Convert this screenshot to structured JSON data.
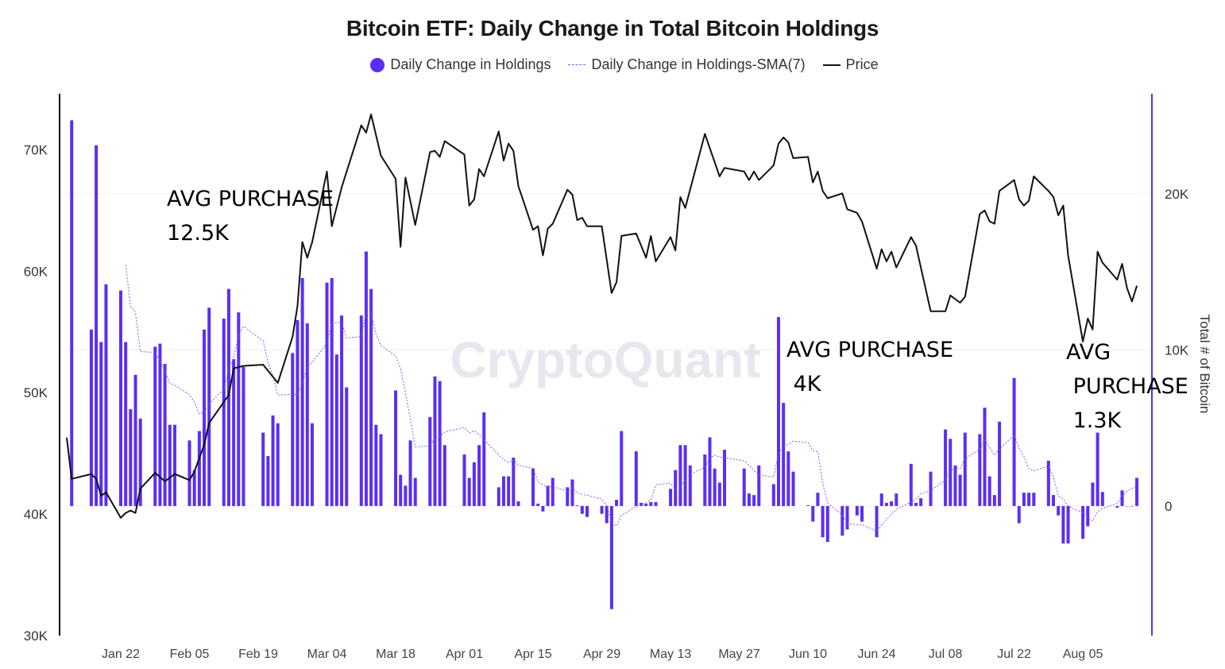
{
  "chart_data": {
    "type": "bar+line",
    "title": "Bitcoin ETF: Daily Change in Total Bitcoin Holdings",
    "legend": [
      {
        "name": "Daily Change in Holdings",
        "style": "dot"
      },
      {
        "name": "Daily Change in Holdings-SMA(7)",
        "style": "dashed"
      },
      {
        "name": "Price",
        "style": "line"
      }
    ],
    "legend_position": "top-center",
    "watermark": "CryptoQuant",
    "colors": {
      "bars": "#5b2ef5",
      "sma": "#7b5cf0",
      "price": "#111111",
      "right_axis": "#5b2ef5",
      "grid": "#f0f0f0"
    },
    "x_axis": {
      "type": "date",
      "range": [
        "2024-01-10",
        "2024-08-19"
      ],
      "ticks": [
        "Jan 22",
        "Feb 05",
        "Feb 19",
        "Mar 04",
        "Mar 18",
        "Apr 01",
        "Apr 15",
        "Apr 29",
        "May 13",
        "May 27",
        "Jun 10",
        "Jun 24",
        "Jul 08",
        "Jul 22",
        "Aug 05"
      ],
      "tick_dates": [
        "2024-01-22",
        "2024-02-05",
        "2024-02-19",
        "2024-03-04",
        "2024-03-18",
        "2024-04-01",
        "2024-04-15",
        "2024-04-29",
        "2024-05-13",
        "2024-05-27",
        "2024-06-10",
        "2024-06-24",
        "2024-07-08",
        "2024-07-22",
        "2024-08-05"
      ]
    },
    "y_left": {
      "label": "",
      "ticks": [
        "30K",
        "40K",
        "50K",
        "60K",
        "70K"
      ],
      "tick_values": [
        30000,
        40000,
        50000,
        60000,
        70000
      ],
      "range": [
        30000,
        74600
      ]
    },
    "y_right": {
      "label": "Total # of Bitcoin",
      "ticks": [
        "0",
        "10K",
        "20K"
      ],
      "tick_values": [
        0,
        10000,
        20000
      ],
      "range": [
        -8300,
        26400
      ]
    },
    "grid": true,
    "bars": {
      "name": "Daily Change in Holdings",
      "dates": [
        "2024-01-12",
        "2024-01-16",
        "2024-01-17",
        "2024-01-18",
        "2024-01-19",
        "2024-01-22",
        "2024-01-23",
        "2024-01-24",
        "2024-01-25",
        "2024-01-26",
        "2024-01-29",
        "2024-01-30",
        "2024-01-31",
        "2024-02-01",
        "2024-02-02",
        "2024-02-05",
        "2024-02-06",
        "2024-02-07",
        "2024-02-08",
        "2024-02-09",
        "2024-02-12",
        "2024-02-13",
        "2024-02-14",
        "2024-02-15",
        "2024-02-16",
        "2024-02-20",
        "2024-02-21",
        "2024-02-22",
        "2024-02-23",
        "2024-02-26",
        "2024-02-27",
        "2024-02-28",
        "2024-02-29",
        "2024-03-01",
        "2024-03-04",
        "2024-03-05",
        "2024-03-06",
        "2024-03-07",
        "2024-03-08",
        "2024-03-11",
        "2024-03-12",
        "2024-03-13",
        "2024-03-14",
        "2024-03-15",
        "2024-03-18",
        "2024-03-19",
        "2024-03-20",
        "2024-03-21",
        "2024-03-22",
        "2024-03-25",
        "2024-03-26",
        "2024-03-27",
        "2024-03-28",
        "2024-04-01",
        "2024-04-02",
        "2024-04-03",
        "2024-04-04",
        "2024-04-05",
        "2024-04-08",
        "2024-04-09",
        "2024-04-10",
        "2024-04-11",
        "2024-04-12",
        "2024-04-15",
        "2024-04-16",
        "2024-04-17",
        "2024-04-18",
        "2024-04-19",
        "2024-04-22",
        "2024-04-23",
        "2024-04-24",
        "2024-04-25",
        "2024-04-26",
        "2024-04-29",
        "2024-04-30",
        "2024-05-01",
        "2024-05-02",
        "2024-05-03",
        "2024-05-06",
        "2024-05-07",
        "2024-05-08",
        "2024-05-09",
        "2024-05-10",
        "2024-05-13",
        "2024-05-14",
        "2024-05-15",
        "2024-05-16",
        "2024-05-17",
        "2024-05-20",
        "2024-05-21",
        "2024-05-22",
        "2024-05-23",
        "2024-05-24",
        "2024-05-28",
        "2024-05-29",
        "2024-05-30",
        "2024-05-31",
        "2024-06-03",
        "2024-06-04",
        "2024-06-05",
        "2024-06-06",
        "2024-06-07",
        "2024-06-10",
        "2024-06-11",
        "2024-06-12",
        "2024-06-13",
        "2024-06-14",
        "2024-06-17",
        "2024-06-18",
        "2024-06-20",
        "2024-06-21",
        "2024-06-24",
        "2024-06-25",
        "2024-06-26",
        "2024-06-27",
        "2024-06-28",
        "2024-07-01",
        "2024-07-02",
        "2024-07-03",
        "2024-07-05",
        "2024-07-08",
        "2024-07-09",
        "2024-07-10",
        "2024-07-11",
        "2024-07-12",
        "2024-07-15",
        "2024-07-16",
        "2024-07-17",
        "2024-07-18",
        "2024-07-19",
        "2024-07-22",
        "2024-07-23",
        "2024-07-24",
        "2024-07-25",
        "2024-07-26",
        "2024-07-29",
        "2024-07-30",
        "2024-07-31",
        "2024-08-01",
        "2024-08-02",
        "2024-08-05",
        "2024-08-06",
        "2024-08-07",
        "2024-08-08",
        "2024-08-09",
        "2024-08-12",
        "2024-08-13",
        "2024-08-14",
        "2024-08-15",
        "2024-08-16"
      ],
      "values": [
        24700,
        11300,
        23100,
        10500,
        14200,
        13800,
        10500,
        6200,
        8400,
        5600,
        10200,
        10400,
        9100,
        5200,
        5200,
        4200,
        2300,
        4800,
        11300,
        12700,
        12000,
        13900,
        9400,
        12400,
        8900,
        4700,
        3200,
        5800,
        5300,
        9800,
        11900,
        14600,
        11700,
        5300,
        14300,
        14600,
        9700,
        12200,
        7600,
        12200,
        16300,
        13900,
        5200,
        4600,
        7400,
        2000,
        1300,
        4200,
        1800,
        5700,
        8300,
        8000,
        3900,
        3300,
        1800,
        2800,
        3900,
        6000,
        1200,
        1900,
        1900,
        3100,
        300,
        2400,
        150,
        -350,
        1300,
        1800,
        1200,
        1700,
        50,
        -500,
        -700,
        -500,
        -1100,
        -6600,
        400,
        4800,
        3500,
        200,
        150,
        250,
        250,
        1100,
        2300,
        3900,
        3900,
        2600,
        3300,
        4400,
        2400,
        1500,
        3600,
        2400,
        800,
        700,
        2600,
        1400,
        12100,
        6600,
        3500,
        2200,
        50,
        -1000,
        850,
        -2000,
        -2300,
        -1900,
        -1500,
        -600,
        -1000,
        -2000,
        800,
        200,
        300,
        800,
        2700,
        200,
        500,
        2200,
        4900,
        4300,
        2600,
        2000,
        4700,
        4600,
        6300,
        1900,
        700,
        5400,
        8200,
        -1100,
        850,
        850,
        850,
        2900,
        700,
        -600,
        -2400,
        -2400,
        -2100,
        -1300,
        1500,
        4700,
        900,
        -100,
        1000,
        0,
        0,
        1800
      ]
    },
    "sma": {
      "name": "Daily Change in Holdings-SMA(7)",
      "window": 7
    },
    "price": {
      "name": "Price",
      "dates": [
        "2024-01-11",
        "2024-01-12",
        "2024-01-16",
        "2024-01-17",
        "2024-01-18",
        "2024-01-19",
        "2024-01-22",
        "2024-01-23",
        "2024-01-24",
        "2024-01-25",
        "2024-01-26",
        "2024-01-29",
        "2024-01-31",
        "2024-02-02",
        "2024-02-05",
        "2024-02-06",
        "2024-02-08",
        "2024-02-09",
        "2024-02-13",
        "2024-02-14",
        "2024-02-16",
        "2024-02-20",
        "2024-02-23",
        "2024-02-26",
        "2024-02-27",
        "2024-02-28",
        "2024-02-29",
        "2024-03-01",
        "2024-03-04",
        "2024-03-05",
        "2024-03-07",
        "2024-03-11",
        "2024-03-12",
        "2024-03-13",
        "2024-03-15",
        "2024-03-18",
        "2024-03-19",
        "2024-03-20",
        "2024-03-22",
        "2024-03-25",
        "2024-03-26",
        "2024-03-27",
        "2024-03-28",
        "2024-04-01",
        "2024-04-02",
        "2024-04-03",
        "2024-04-04",
        "2024-04-05",
        "2024-04-08",
        "2024-04-09",
        "2024-04-10",
        "2024-04-11",
        "2024-04-12",
        "2024-04-15",
        "2024-04-16",
        "2024-04-17",
        "2024-04-18",
        "2024-04-19",
        "2024-04-22",
        "2024-04-23",
        "2024-04-24",
        "2024-04-25",
        "2024-04-26",
        "2024-04-29",
        "2024-05-01",
        "2024-05-02",
        "2024-05-03",
        "2024-05-06",
        "2024-05-08",
        "2024-05-09",
        "2024-05-10",
        "2024-05-13",
        "2024-05-14",
        "2024-05-15",
        "2024-05-16",
        "2024-05-20",
        "2024-05-23",
        "2024-05-24",
        "2024-05-28",
        "2024-05-29",
        "2024-05-30",
        "2024-05-31",
        "2024-06-03",
        "2024-06-04",
        "2024-06-05",
        "2024-06-06",
        "2024-06-07",
        "2024-06-10",
        "2024-06-11",
        "2024-06-12",
        "2024-06-13",
        "2024-06-14",
        "2024-06-17",
        "2024-06-18",
        "2024-06-20",
        "2024-06-21",
        "2024-06-24",
        "2024-06-25",
        "2024-06-26",
        "2024-06-27",
        "2024-06-28",
        "2024-07-01",
        "2024-07-02",
        "2024-07-05",
        "2024-07-08",
        "2024-07-09",
        "2024-07-11",
        "2024-07-12",
        "2024-07-15",
        "2024-07-16",
        "2024-07-17",
        "2024-07-18",
        "2024-07-19",
        "2024-07-22",
        "2024-07-23",
        "2024-07-24",
        "2024-07-25",
        "2024-07-26",
        "2024-07-29",
        "2024-07-30",
        "2024-07-31",
        "2024-08-01",
        "2024-08-02",
        "2024-08-05",
        "2024-08-06",
        "2024-08-07",
        "2024-08-08",
        "2024-08-09",
        "2024-08-12",
        "2024-08-13",
        "2024-08-14",
        "2024-08-15",
        "2024-08-16"
      ],
      "values": [
        46300,
        42900,
        43300,
        42900,
        41500,
        41800,
        39700,
        40100,
        40300,
        40100,
        42100,
        43400,
        42700,
        43300,
        42800,
        43500,
        45700,
        47500,
        49800,
        52000,
        52200,
        52300,
        50800,
        54600,
        57100,
        62400,
        61100,
        62400,
        68200,
        63700,
        66900,
        72000,
        71400,
        72900,
        69500,
        67600,
        62000,
        67700,
        63800,
        69800,
        69900,
        69400,
        70700,
        69600,
        65400,
        65900,
        68400,
        67800,
        71500,
        69100,
        70500,
        69900,
        67000,
        63400,
        63700,
        61300,
        63500,
        63900,
        66700,
        66300,
        64200,
        64400,
        63700,
        63700,
        58200,
        59100,
        62900,
        63100,
        61100,
        62900,
        60800,
        62800,
        61700,
        66100,
        65200,
        71300,
        67800,
        68500,
        68200,
        67500,
        68200,
        67500,
        68700,
        70500,
        71000,
        70600,
        69300,
        69400,
        67300,
        68200,
        66600,
        66000,
        66400,
        65100,
        64800,
        64100,
        60200,
        61800,
        60800,
        61600,
        60300,
        62800,
        62100,
        56700,
        56700,
        58000,
        57400,
        57900,
        64700,
        65000,
        64100,
        63900,
        66600,
        67500,
        65900,
        65400,
        65800,
        67800,
        66600,
        66100,
        64600,
        65400,
        61300,
        54200,
        56100,
        55200,
        61600,
        60700,
        59300,
        60600,
        58600,
        57500,
        58800
      ]
    },
    "annotations": [
      {
        "lines": [
          "AVG PURCHASE",
          "12.5K"
        ]
      },
      {
        "lines": [
          "AVG PURCHASE",
          " 4K"
        ]
      },
      {
        "lines": [
          "AVG",
          " PURCHASE",
          " 1.3K"
        ]
      }
    ]
  }
}
